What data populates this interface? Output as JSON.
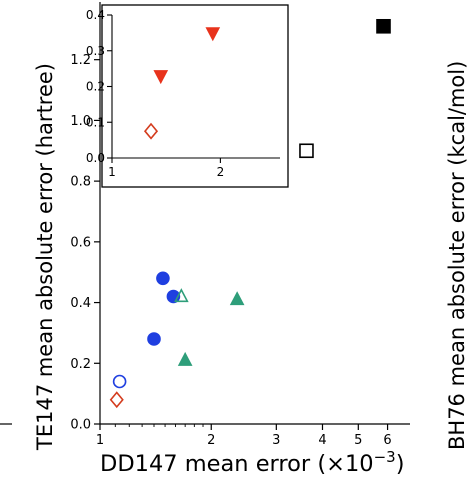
{
  "chart_data": [
    {
      "type": "scatter",
      "title": "",
      "xlabel": "DD147 mean error (×10",
      "xlabel_exp": "−3",
      "xlabel_close": ")",
      "ylabel": "TE147 mean absolute error (hartree)",
      "ylabel_right": "BH76 mean absolute error (kcal/mol)",
      "xscale": "log",
      "xlim": [
        1,
        6.9
      ],
      "ylim": [
        0,
        1.39
      ],
      "xticks": [
        1,
        2,
        3,
        4,
        5,
        6
      ],
      "xtick_labels": [
        "1",
        "2",
        "3",
        "4",
        "5",
        "6"
      ],
      "yticks": [
        0.0,
        0.2,
        0.4,
        0.6,
        0.8,
        1.0,
        1.2
      ],
      "ytick_labels": [
        "0.0",
        "0.2",
        "0.4",
        "0.6",
        "0.8",
        "1.0",
        "1.2"
      ],
      "grid": false,
      "series": [
        {
          "marker": "circle",
          "filled": true,
          "color": "#1f3fe0",
          "points": [
            {
              "x": 1.48,
              "y": 0.48
            },
            {
              "x": 1.58,
              "y": 0.42
            },
            {
              "x": 1.4,
              "y": 0.28
            }
          ]
        },
        {
          "marker": "circle",
          "filled": false,
          "color": "#1f3fe0",
          "points": [
            {
              "x": 1.13,
              "y": 0.14
            }
          ]
        },
        {
          "marker": "triangle-up",
          "filled": true,
          "color": "#2e9e7a",
          "points": [
            {
              "x": 2.35,
              "y": 0.41
            },
            {
              "x": 1.7,
              "y": 0.21
            }
          ]
        },
        {
          "marker": "triangle-up",
          "filled": false,
          "color": "#2e9e7a",
          "points": [
            {
              "x": 1.66,
              "y": 0.42
            }
          ]
        },
        {
          "marker": "diamond",
          "filled": false,
          "color": "#d43c1e",
          "points": [
            {
              "x": 1.11,
              "y": 0.08
            }
          ]
        },
        {
          "marker": "square",
          "filled": false,
          "color": "#000000",
          "points": [
            {
              "x": 3.62,
              "y": 0.9
            }
          ]
        },
        {
          "marker": "square",
          "filled": true,
          "color": "#000000",
          "points": [
            {
              "x": 5.85,
              "y": 1.31
            }
          ]
        }
      ]
    },
    {
      "type": "scatter",
      "title": "",
      "xscale": "linear",
      "xlim": [
        1,
        2.55
      ],
      "ylim": [
        0,
        0.4
      ],
      "xticks": [
        1,
        2
      ],
      "xtick_labels": [
        "1",
        "2"
      ],
      "yticks": [
        0.0,
        0.1,
        0.2,
        0.3,
        0.4
      ],
      "ytick_labels": [
        "0.0",
        "0.1",
        "0.2",
        "0.3",
        "0.4"
      ],
      "grid": false,
      "series": [
        {
          "marker": "triangle-down",
          "filled": true,
          "color": "#e8331c",
          "points": [
            {
              "x": 1.93,
              "y": 0.35
            },
            {
              "x": 1.45,
              "y": 0.23
            }
          ]
        },
        {
          "marker": "diamond",
          "filled": false,
          "color": "#d43c1e",
          "points": [
            {
              "x": 1.36,
              "y": 0.075
            }
          ]
        }
      ]
    }
  ]
}
